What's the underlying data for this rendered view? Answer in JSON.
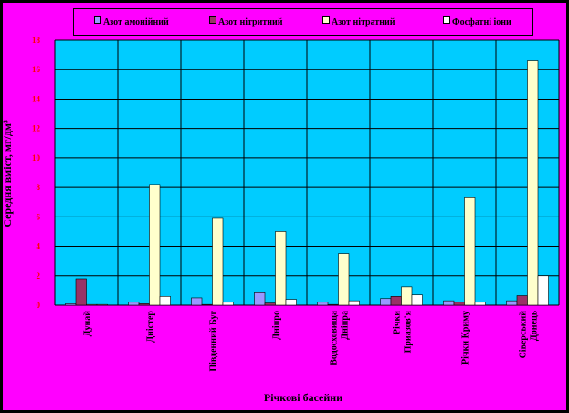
{
  "chart_data": {
    "type": "bar",
    "xlabel": "Річкові басейни",
    "ylabel": "Середня вміст, мг/дм³",
    "ylim": [
      0,
      18
    ],
    "yticks": [
      0,
      2,
      4,
      6,
      8,
      10,
      12,
      14,
      16,
      18
    ],
    "grid": true,
    "legend_position": "top",
    "categories": [
      "Дунай",
      "Дністер",
      "Південний Буг",
      "Дніпро",
      "Водосховища Дніпра",
      "Річки Приазов'я",
      "Річки Криму",
      "Сіверський Донець"
    ],
    "series": [
      {
        "name": "Азот амонійний",
        "color": "#9999ff",
        "values": [
          0.1,
          0.2,
          0.5,
          0.85,
          0.2,
          0.45,
          0.3,
          0.3
        ]
      },
      {
        "name": "Азот нітритний",
        "color": "#993366",
        "values": [
          1.8,
          0.1,
          0.05,
          0.15,
          0.05,
          0.6,
          0.2,
          0.65
        ]
      },
      {
        "name": "Азот нітратний",
        "color": "#ffffcc",
        "values": [
          0.05,
          8.2,
          5.9,
          5.0,
          3.5,
          1.25,
          7.3,
          16.6
        ]
      },
      {
        "name": "Фосфатні іони",
        "color": "#ffffff",
        "values": [
          0.05,
          0.6,
          0.2,
          0.4,
          0.3,
          0.7,
          0.2,
          2.0
        ]
      }
    ]
  }
}
